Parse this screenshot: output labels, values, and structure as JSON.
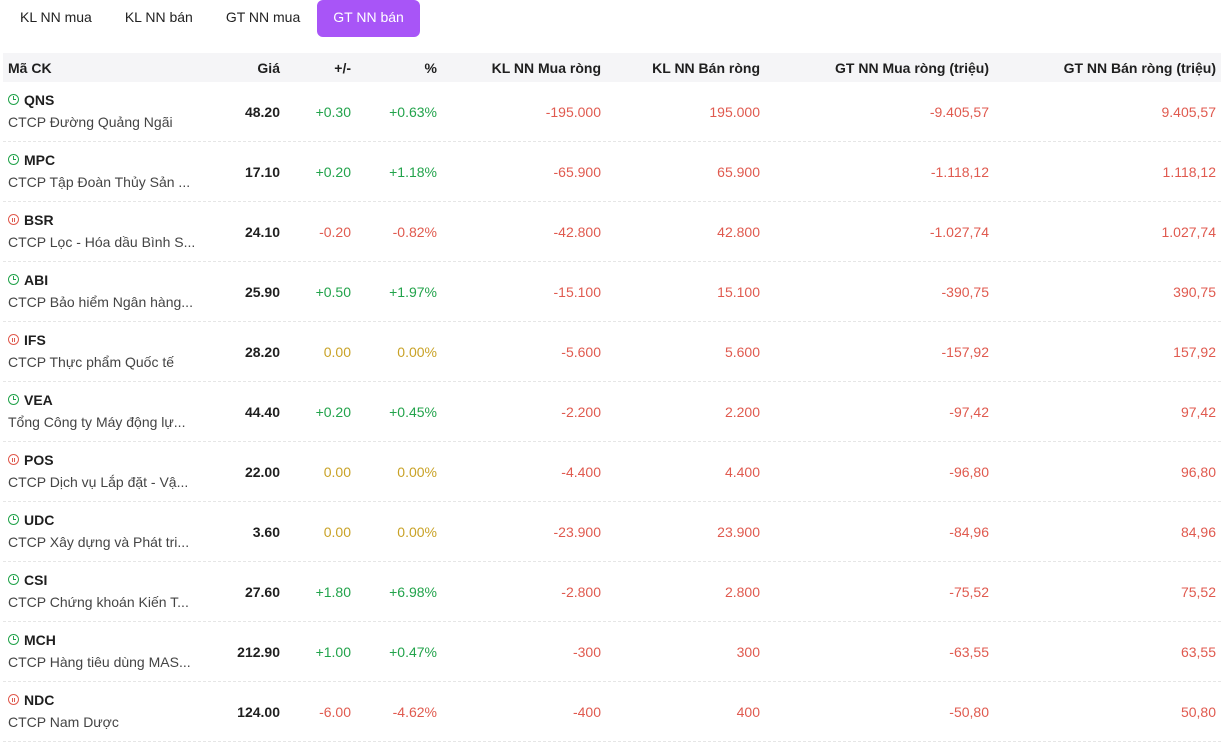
{
  "tabs": [
    {
      "label": "KL NN mua",
      "active": false
    },
    {
      "label": "KL NN bán",
      "active": false
    },
    {
      "label": "GT NN mua",
      "active": false
    },
    {
      "label": "GT NN bán",
      "active": true
    }
  ],
  "columns": {
    "symbol": "Mã CK",
    "price": "Giá",
    "change": "+/-",
    "percent": "%",
    "kl_buy": "KL NN Mua ròng",
    "kl_sell": "KL NN Bán ròng",
    "gt_buy": "GT NN Mua ròng (triệu)",
    "gt_sell": "GT NN Bán ròng (triệu)"
  },
  "colors": {
    "up": "#22a34b",
    "down": "#e05a4f",
    "ref": "#c9a227",
    "accent": "#a855f7"
  },
  "rows": [
    {
      "symbol": "QNS",
      "name": "CTCP Đường Quảng Ngãi",
      "status": "up",
      "price": "48.20",
      "change": "+0.30",
      "percent": "+0.63%",
      "kl_buy": "-195.000",
      "kl_sell": "195.000",
      "gt_buy": "-9.405,57",
      "gt_sell": "9.405,57"
    },
    {
      "symbol": "MPC",
      "name": "CTCP Tập Đoàn Thủy Sản ...",
      "status": "up",
      "price": "17.10",
      "change": "+0.20",
      "percent": "+1.18%",
      "kl_buy": "-65.900",
      "kl_sell": "65.900",
      "gt_buy": "-1.118,12",
      "gt_sell": "1.118,12"
    },
    {
      "symbol": "BSR",
      "name": "CTCP Lọc - Hóa dầu Bình S...",
      "status": "pause",
      "price": "24.10",
      "change": "-0.20",
      "percent": "-0.82%",
      "kl_buy": "-42.800",
      "kl_sell": "42.800",
      "gt_buy": "-1.027,74",
      "gt_sell": "1.027,74"
    },
    {
      "symbol": "ABI",
      "name": "CTCP Bảo hiểm Ngân hàng...",
      "status": "up",
      "price": "25.90",
      "change": "+0.50",
      "percent": "+1.97%",
      "kl_buy": "-15.100",
      "kl_sell": "15.100",
      "gt_buy": "-390,75",
      "gt_sell": "390,75"
    },
    {
      "symbol": "IFS",
      "name": "CTCP Thực phẩm Quốc tế",
      "status": "pause",
      "price": "28.20",
      "change": "0.00",
      "percent": "0.00%",
      "kl_buy": "-5.600",
      "kl_sell": "5.600",
      "gt_buy": "-157,92",
      "gt_sell": "157,92"
    },
    {
      "symbol": "VEA",
      "name": "Tổng Công ty Máy động lự...",
      "status": "up",
      "price": "44.40",
      "change": "+0.20",
      "percent": "+0.45%",
      "kl_buy": "-2.200",
      "kl_sell": "2.200",
      "gt_buy": "-97,42",
      "gt_sell": "97,42"
    },
    {
      "symbol": "POS",
      "name": "CTCP Dịch vụ Lắp đặt - Vậ...",
      "status": "pause",
      "price": "22.00",
      "change": "0.00",
      "percent": "0.00%",
      "kl_buy": "-4.400",
      "kl_sell": "4.400",
      "gt_buy": "-96,80",
      "gt_sell": "96,80"
    },
    {
      "symbol": "UDC",
      "name": "CTCP Xây dựng và Phát tri...",
      "status": "up",
      "price": "3.60",
      "change": "0.00",
      "percent": "0.00%",
      "kl_buy": "-23.900",
      "kl_sell": "23.900",
      "gt_buy": "-84,96",
      "gt_sell": "84,96"
    },
    {
      "symbol": "CSI",
      "name": "CTCP Chứng khoán Kiến T...",
      "status": "up",
      "price": "27.60",
      "change": "+1.80",
      "percent": "+6.98%",
      "kl_buy": "-2.800",
      "kl_sell": "2.800",
      "gt_buy": "-75,52",
      "gt_sell": "75,52"
    },
    {
      "symbol": "MCH",
      "name": "CTCP Hàng tiêu dùng MAS...",
      "status": "up",
      "price": "212.90",
      "change": "+1.00",
      "percent": "+0.47%",
      "kl_buy": "-300",
      "kl_sell": "300",
      "gt_buy": "-63,55",
      "gt_sell": "63,55"
    },
    {
      "symbol": "NDC",
      "name": "CTCP Nam Dược",
      "status": "pause",
      "price": "124.00",
      "change": "-6.00",
      "percent": "-4.62%",
      "kl_buy": "-400",
      "kl_sell": "400",
      "gt_buy": "-50,80",
      "gt_sell": "50,80"
    }
  ]
}
